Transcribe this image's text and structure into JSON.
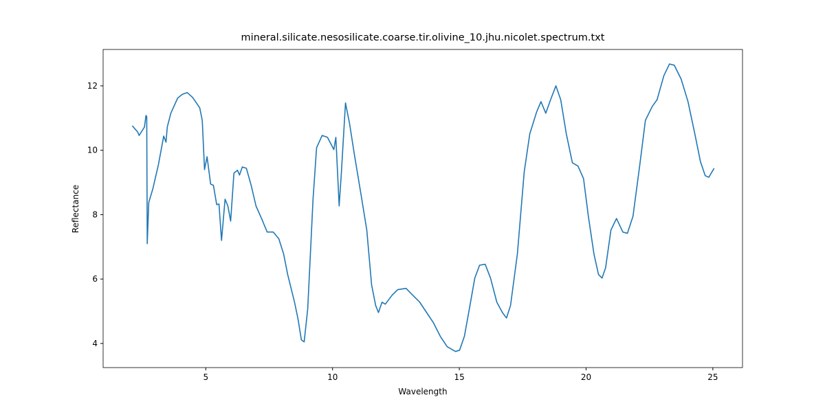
{
  "chart_data": {
    "type": "line",
    "title": "mineral.silicate.nesosilicate.coarse.tir.olivine_10.jhu.nicolet.spectrum.txt",
    "x_label": "Wavelength",
    "y_label": "Reflectance",
    "xlim": [
      0.95,
      26.17
    ],
    "ylim": [
      3.25,
      13.13
    ],
    "xticks": [
      5,
      10,
      15,
      20,
      25
    ],
    "yticks": [
      4,
      6,
      8,
      10,
      12
    ],
    "grid": false,
    "series": [
      {
        "color": "#1f77b4",
        "x": [
          2.1,
          2.31,
          2.37,
          2.58,
          2.64,
          2.67,
          2.69,
          2.75,
          2.91,
          3.13,
          3.34,
          3.43,
          3.48,
          3.62,
          3.89,
          4.08,
          4.27,
          4.48,
          4.76,
          4.86,
          4.95,
          5.05,
          5.19,
          5.3,
          5.43,
          5.52,
          5.62,
          5.76,
          5.87,
          5.98,
          6.11,
          6.25,
          6.33,
          6.44,
          6.6,
          6.79,
          6.98,
          7.2,
          7.42,
          7.66,
          7.88,
          8.07,
          8.23,
          8.5,
          8.64,
          8.77,
          8.88,
          9.02,
          9.23,
          9.37,
          9.59,
          9.8,
          10.05,
          10.13,
          10.26,
          10.35,
          10.51,
          10.67,
          10.86,
          11.13,
          11.35,
          11.54,
          11.7,
          11.81,
          11.95,
          12.08,
          12.35,
          12.57,
          12.9,
          13.11,
          13.44,
          13.71,
          13.98,
          14.25,
          14.52,
          14.85,
          15.01,
          15.2,
          15.42,
          15.61,
          15.8,
          16.02,
          16.23,
          16.48,
          16.7,
          16.86,
          17.02,
          17.29,
          17.56,
          17.78,
          18.05,
          18.22,
          18.41,
          18.6,
          18.81,
          19.0,
          19.22,
          19.46,
          19.68,
          19.9,
          20.09,
          20.31,
          20.49,
          20.63,
          20.77,
          20.98,
          21.2,
          21.45,
          21.63,
          21.85,
          22.12,
          22.34,
          22.61,
          22.8,
          23.07,
          23.29,
          23.48,
          23.75,
          24.02,
          24.29,
          24.51,
          24.7,
          24.84,
          25.05
        ],
        "values": [
          10.76,
          10.57,
          10.46,
          10.72,
          11.08,
          11.04,
          7.1,
          8.38,
          8.8,
          9.55,
          10.44,
          10.25,
          10.72,
          11.15,
          11.62,
          11.74,
          11.79,
          11.64,
          11.32,
          10.93,
          9.4,
          9.8,
          8.95,
          8.91,
          8.31,
          8.33,
          7.2,
          8.48,
          8.27,
          7.8,
          9.29,
          9.38,
          9.23,
          9.48,
          9.44,
          8.91,
          8.27,
          7.88,
          7.46,
          7.46,
          7.25,
          6.78,
          6.14,
          5.28,
          4.75,
          4.11,
          4.05,
          5.07,
          8.48,
          10.08,
          10.46,
          10.4,
          10.02,
          10.4,
          8.27,
          9.33,
          11.47,
          10.83,
          9.87,
          8.59,
          7.52,
          5.82,
          5.18,
          4.96,
          5.28,
          5.22,
          5.5,
          5.67,
          5.71,
          5.54,
          5.28,
          4.96,
          4.64,
          4.22,
          3.9,
          3.75,
          3.79,
          4.22,
          5.18,
          6.03,
          6.43,
          6.46,
          6.03,
          5.28,
          4.96,
          4.79,
          5.18,
          6.78,
          9.33,
          10.51,
          11.19,
          11.51,
          11.15,
          11.57,
          12.0,
          11.57,
          10.51,
          9.61,
          9.51,
          9.12,
          7.95,
          6.78,
          6.14,
          6.03,
          6.35,
          7.52,
          7.88,
          7.46,
          7.42,
          7.95,
          9.55,
          10.93,
          11.36,
          11.57,
          12.32,
          12.68,
          12.64,
          12.21,
          11.51,
          10.51,
          9.65,
          9.21,
          9.16,
          9.44
        ]
      }
    ]
  }
}
